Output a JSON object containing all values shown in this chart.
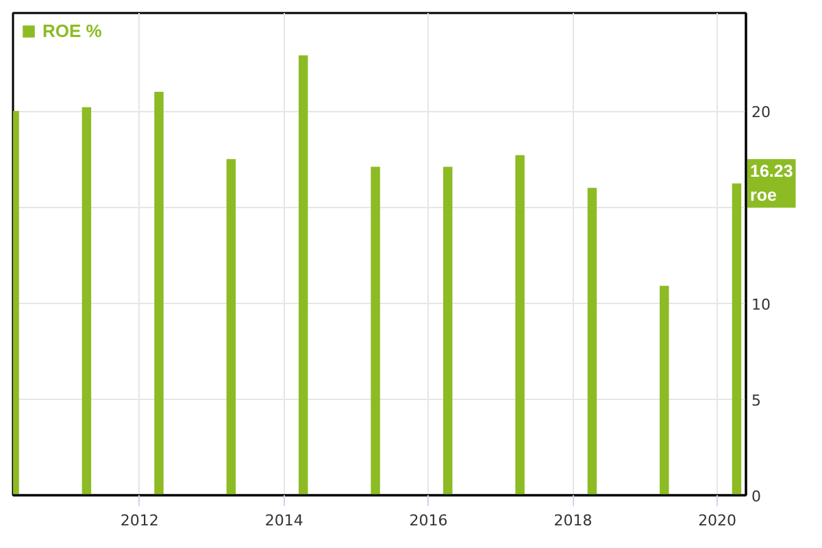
{
  "chart_data": {
    "type": "bar",
    "x": [
      "2010-04-08",
      "2011-04-08",
      "2012-04-08",
      "2013-04-08",
      "2014-04-08",
      "2015-04-08",
      "2016-04-08",
      "2017-04-08",
      "2018-04-08",
      "2019-04-08",
      "2020-04-08"
    ],
    "series": [
      {
        "name": "ROE %",
        "color": "#8dbb24",
        "values": [
          20.0,
          20.2,
          21.0,
          17.5,
          22.9,
          17.1,
          17.1,
          17.7,
          16.0,
          10.9,
          16.23
        ]
      }
    ],
    "xlim": [
      "2010-04-01",
      "2020-05-25"
    ],
    "xticks": [
      "2012",
      "2014",
      "2016",
      "2018",
      "2020"
    ],
    "ylim": [
      0,
      25.1
    ],
    "yticks": [
      0,
      5,
      10,
      {
        "value": 15,
        "label": null
      },
      20
    ],
    "grid": true,
    "legend": "top left",
    "annotations": [
      {
        "text": "16.23\nroe",
        "y": 16.23
      }
    ]
  }
}
